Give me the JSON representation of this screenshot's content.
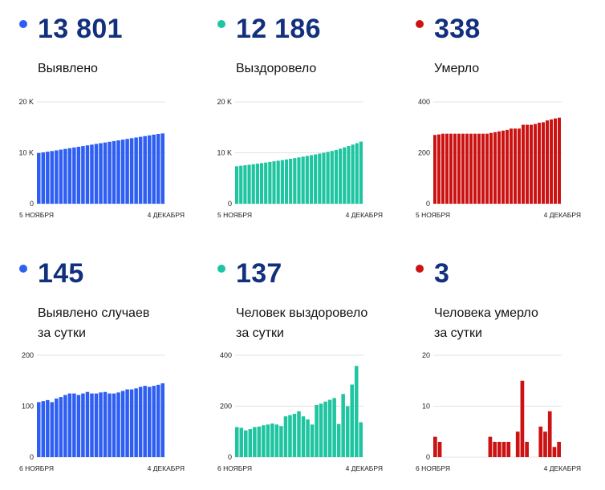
{
  "panels": [
    {
      "color": "#2f5ff2",
      "value": "13 801",
      "caption": [
        "Выявлено"
      ],
      "chart_data": {
        "type": "bar",
        "ylim": [
          0,
          20000
        ],
        "yticks": [
          {
            "v": 0,
            "label": "0"
          },
          {
            "v": 10000,
            "label": "10 K"
          },
          {
            "v": 20000,
            "label": "20 K"
          }
        ],
        "xstart": "5 НОЯБРЯ",
        "xend": "4 ДЕКАБРЯ",
        "values": [
          9950,
          10080,
          10210,
          10340,
          10480,
          10620,
          10760,
          10900,
          11040,
          11180,
          11320,
          11460,
          11600,
          11740,
          11880,
          12020,
          12160,
          12300,
          12440,
          12580,
          12720,
          12860,
          13000,
          13140,
          13280,
          13420,
          13560,
          13700,
          13801
        ]
      }
    },
    {
      "color": "#1ec5a0",
      "value": "12 186",
      "caption": [
        "Выздоровело"
      ],
      "chart_data": {
        "type": "bar",
        "ylim": [
          0,
          20000
        ],
        "yticks": [
          {
            "v": 0,
            "label": "0"
          },
          {
            "v": 10000,
            "label": "10 K"
          },
          {
            "v": 20000,
            "label": "20 K"
          }
        ],
        "xstart": "5 НОЯБРЯ",
        "xend": "4 ДЕКАБРЯ",
        "values": [
          7350,
          7450,
          7550,
          7650,
          7750,
          7860,
          7970,
          8080,
          8200,
          8320,
          8440,
          8560,
          8690,
          8820,
          8950,
          9090,
          9230,
          9380,
          9530,
          9680,
          9840,
          10000,
          10180,
          10360,
          10560,
          10800,
          11060,
          11340,
          11600,
          11880,
          12186
        ]
      }
    },
    {
      "color": "#cc1313",
      "value": "338",
      "caption": [
        "Умерло"
      ],
      "chart_data": {
        "type": "bar",
        "ylim": [
          0,
          400
        ],
        "yticks": [
          {
            "v": 0,
            "label": "0"
          },
          {
            "v": 200,
            "label": "200"
          },
          {
            "v": 400,
            "label": "400"
          }
        ],
        "xstart": "5 НОЯБРЯ",
        "xend": "4 ДЕКАБРЯ",
        "values": [
          270,
          272,
          275,
          275,
          275,
          275,
          275,
          275,
          275,
          275,
          275,
          275,
          275,
          275,
          278,
          281,
          284,
          287,
          290,
          295,
          295,
          295,
          310,
          310,
          310,
          313,
          318,
          320,
          327,
          331,
          335,
          338
        ]
      }
    },
    {
      "color": "#2f5ff2",
      "value": "145",
      "caption": [
        "Выявлено случаев",
        "за сутки"
      ],
      "chart_data": {
        "type": "bar",
        "ylim": [
          0,
          200
        ],
        "yticks": [
          {
            "v": 0,
            "label": "0"
          },
          {
            "v": 100,
            "label": "100"
          },
          {
            "v": 200,
            "label": "200"
          }
        ],
        "xstart": "6 НОЯБРЯ",
        "xend": "4 ДЕКАБРЯ",
        "values": [
          108,
          110,
          112,
          108,
          115,
          118,
          122,
          125,
          125,
          122,
          125,
          128,
          125,
          125,
          127,
          128,
          125,
          125,
          127,
          130,
          133,
          133,
          135,
          138,
          140,
          138,
          140,
          142,
          145
        ]
      }
    },
    {
      "color": "#1ec5a0",
      "value": "137",
      "caption": [
        "Человек выздоровело",
        "за сутки"
      ],
      "chart_data": {
        "type": "bar",
        "ylim": [
          0,
          400
        ],
        "yticks": [
          {
            "v": 0,
            "label": "0"
          },
          {
            "v": 200,
            "label": "200"
          },
          {
            "v": 400,
            "label": "400"
          }
        ],
        "xstart": "6 НОЯБРЯ",
        "xend": "4 ДЕКАБРЯ",
        "values": [
          118,
          115,
          105,
          110,
          118,
          120,
          125,
          128,
          132,
          128,
          122,
          160,
          165,
          170,
          180,
          160,
          148,
          128,
          205,
          210,
          218,
          225,
          232,
          130,
          248,
          200,
          285,
          358,
          137
        ]
      }
    },
    {
      "color": "#cc1313",
      "value": "3",
      "caption": [
        "Человека умерло",
        "за сутки"
      ],
      "chart_data": {
        "type": "bar",
        "ylim": [
          0,
          20
        ],
        "yticks": [
          {
            "v": 0,
            "label": "0"
          },
          {
            "v": 10,
            "label": "10"
          },
          {
            "v": 20,
            "label": "20"
          }
        ],
        "xstart": "6 НОЯБРЯ",
        "xend": "4 ДЕКАБРЯ",
        "values": [
          4,
          3,
          0,
          0,
          0,
          0,
          0,
          0,
          0,
          0,
          0,
          0,
          4,
          3,
          3,
          3,
          3,
          0,
          5,
          15,
          3,
          0,
          0,
          6,
          5,
          9,
          2,
          3
        ]
      }
    }
  ]
}
